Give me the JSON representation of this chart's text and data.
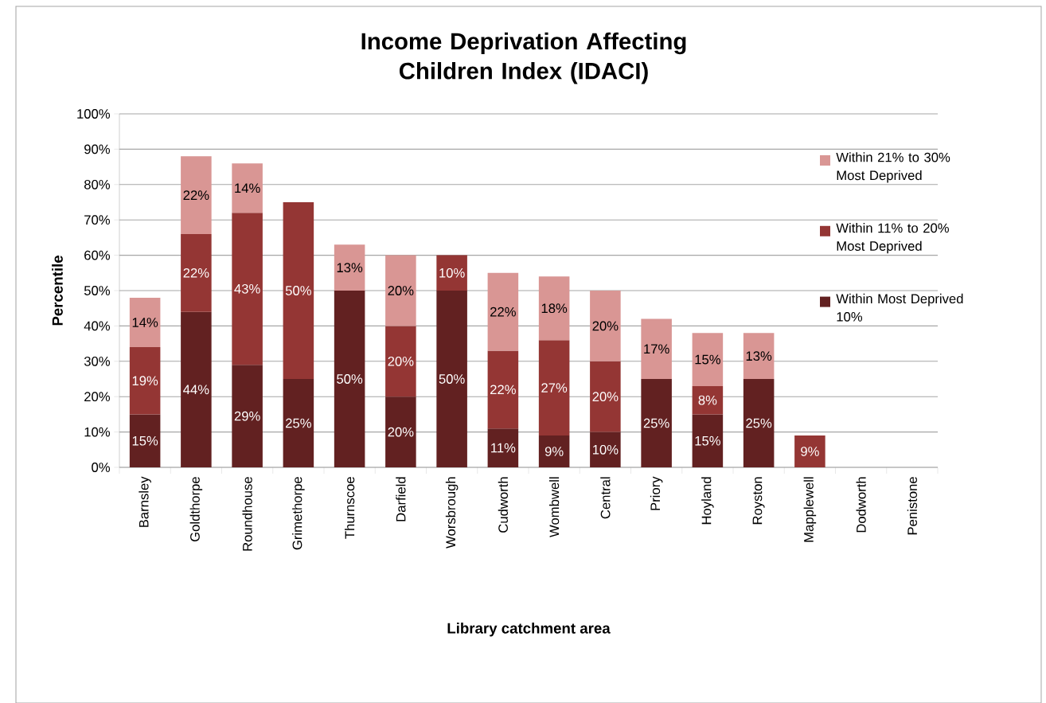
{
  "chart_data": {
    "type": "bar",
    "stacked": true,
    "title": "Income Deprivation Affecting Children Index (IDACI)",
    "xlabel": "Library catchment area",
    "ylabel": "Percentile",
    "categories": [
      "Barnsley",
      "Goldthorpe",
      "Roundhouse",
      "Grimethorpe",
      "Thurnscoe",
      "Darfield",
      "Worsbrough",
      "Cudworth",
      "Wombwell",
      "Central",
      "Priory",
      "Hoyland",
      "Royston",
      "Mapplewell",
      "Dodworth",
      "Penistone"
    ],
    "series": [
      {
        "name": "Within Most Deprived 10%",
        "color": "#622121",
        "values": [
          15,
          44,
          29,
          25,
          50,
          20,
          50,
          11,
          9,
          10,
          25,
          15,
          25,
          null,
          null,
          null
        ],
        "value_labels": [
          "15%",
          "44%",
          "29%",
          "25%",
          "50%",
          "20%",
          "50%",
          "11%",
          "9%",
          "10%",
          "25%",
          "15%",
          "25%",
          null,
          null,
          null
        ]
      },
      {
        "name": "Within 11% to 20% Most Deprived",
        "color": "#943634",
        "values": [
          19,
          22,
          43,
          50,
          null,
          20,
          10,
          22,
          27,
          20,
          null,
          8,
          null,
          9,
          null,
          null
        ],
        "value_labels": [
          "19%",
          "22%",
          "43%",
          "50%",
          null,
          "20%",
          "10%",
          "22%",
          "27%",
          "20%",
          null,
          "8%",
          null,
          "9%",
          null,
          null
        ]
      },
      {
        "name": "Within 21% to 30% Most Deprived",
        "color": "#d99694",
        "values": [
          14,
          22,
          14,
          null,
          13,
          20,
          null,
          22,
          18,
          20,
          17,
          15,
          13,
          null,
          null,
          null
        ],
        "value_labels": [
          "14%",
          "22%",
          "14%",
          null,
          "13%",
          "20%",
          null,
          "22%",
          "18%",
          "20%",
          "17%",
          "15%",
          "13%",
          null,
          null,
          null
        ]
      }
    ],
    "ylim": [
      0,
      100
    ],
    "yticks": [
      {
        "value": 0,
        "label": "0%"
      },
      {
        "value": 10,
        "label": "10%"
      },
      {
        "value": 20,
        "label": "20%"
      },
      {
        "value": 30,
        "label": "30%"
      },
      {
        "value": 40,
        "label": "40%"
      },
      {
        "value": 50,
        "label": "50%"
      },
      {
        "value": 60,
        "label": "60%"
      },
      {
        "value": 70,
        "label": "70%"
      },
      {
        "value": 80,
        "label": "80%"
      },
      {
        "value": 90,
        "label": "90%"
      },
      {
        "value": 100,
        "label": "100%"
      }
    ],
    "grid": "y",
    "legend": "right"
  }
}
